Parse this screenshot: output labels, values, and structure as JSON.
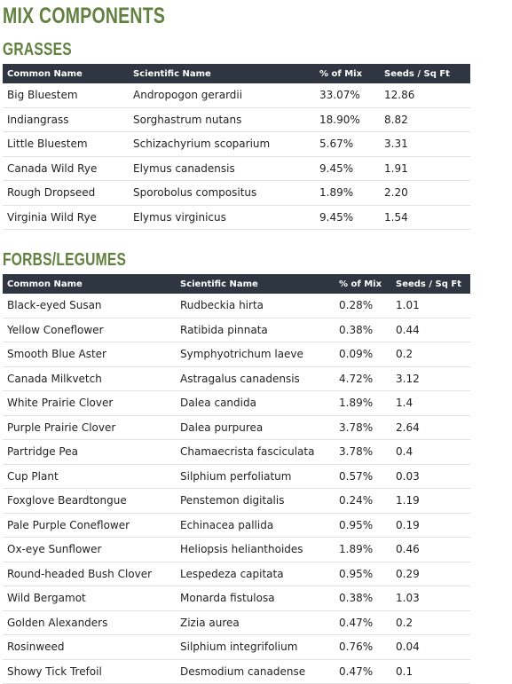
{
  "title": "MIX COMPONENTS",
  "sections": [
    {
      "heading": "GRASSES",
      "table": {
        "header": [
          "Common Name",
          "Scientific Name",
          "% of Mix",
          "Seeds / Sq Ft"
        ],
        "rows": [
          [
            "Big Bluestem",
            "Andropogon gerardii",
            "33.07%",
            "12.86"
          ],
          [
            "Indiangrass",
            "Sorghastrum nutans",
            "18.90%",
            "8.82"
          ],
          [
            "Little Bluestem",
            "Schizachyrium scoparium",
            "5.67%",
            "3.31"
          ],
          [
            "Canada Wild Rye",
            "Elymus canadensis",
            "9.45%",
            "1.91"
          ],
          [
            "Rough Dropseed",
            "Sporobolus compositus",
            "1.89%",
            "2.20"
          ],
          [
            "Virginia Wild Rye",
            "Elymus virginicus",
            "9.45%",
            "1.54"
          ]
        ]
      }
    },
    {
      "heading": "FORBS/LEGUMES",
      "table": {
        "header": [
          "Common Name",
          "Scientific Name",
          "% of Mix",
          "Seeds / Sq Ft"
        ],
        "rows": [
          [
            "Black-eyed Susan",
            "Rudbeckia hirta",
            "0.28%",
            "1.01"
          ],
          [
            "Yellow Coneflower",
            "Ratibida pinnata",
            "0.38%",
            "0.44"
          ],
          [
            "Smooth Blue Aster",
            "Symphyotrichum laeve",
            "0.09%",
            "0.2"
          ],
          [
            "Canada Milkvetch",
            "Astragalus canadensis",
            "4.72%",
            "3.12"
          ],
          [
            "White Prairie Clover",
            "Dalea candida",
            "1.89%",
            "1.4"
          ],
          [
            "Purple Prairie Clover",
            "Dalea purpurea",
            "3.78%",
            "2.64"
          ],
          [
            "Partridge Pea",
            "Chamaecrista fasciculata",
            "3.78%",
            "0.4"
          ],
          [
            "Cup Plant",
            "Silphium perfoliatum",
            "0.57%",
            "0.03"
          ],
          [
            "Foxglove Beardtongue",
            "Penstemon digitalis",
            "0.24%",
            "1.19"
          ],
          [
            "Pale Purple Coneflower",
            "Echinacea pallida",
            "0.95%",
            "0.19"
          ],
          [
            "Ox-eye Sunflower",
            "Heliopsis helianthoides",
            "1.89%",
            "0.46"
          ],
          [
            "Round-headed Bush Clover",
            "Lespedeza capitata",
            "0.95%",
            "0.29"
          ],
          [
            "Wild Bergamot",
            "Monarda fistulosa",
            "0.38%",
            "1.03"
          ],
          [
            "Golden Alexanders",
            "Zizia aurea",
            "0.47%",
            "0.2"
          ],
          [
            "Rosinweed",
            "Silphium integrifolium",
            "0.76%",
            "0.04"
          ],
          [
            "Showy Tick Trefoil",
            "Desmodium canadense",
            "0.47%",
            "0.1"
          ]
        ]
      }
    }
  ]
}
